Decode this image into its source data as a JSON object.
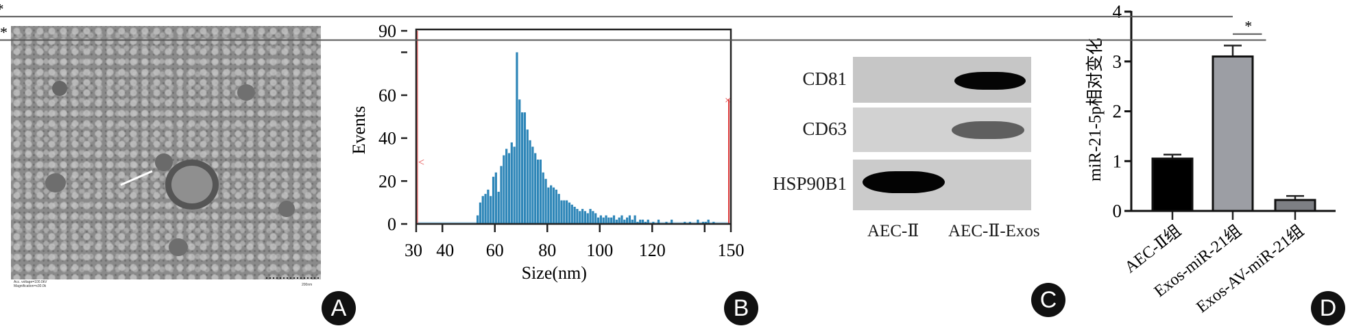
{
  "panel_labels": {
    "a": "A",
    "b": "B",
    "c": "C",
    "d": "D"
  },
  "panel_a": {
    "caption_line1": "Acc. voltage=100.0kV",
    "caption_line2": "Magnification=x30.0k",
    "scale_bar": "200nm"
  },
  "panel_c": {
    "rows": [
      {
        "label": "CD81",
        "lane1": 0,
        "lane2": 1.0
      },
      {
        "label": "CD63",
        "lane1": 0,
        "lane2": 0.55
      },
      {
        "label": "HSP90B1",
        "lane1": 1.0,
        "lane2": 0
      }
    ],
    "lanes": [
      "AEC-Ⅱ",
      "AEC-Ⅱ-Exos"
    ]
  },
  "colors": {
    "histogram": "#2e86b8",
    "gate": "#e03c3c",
    "bar1": "#000000",
    "bar2": "#9c9ea4",
    "bar3": "#7d7f84"
  },
  "chart_data": [
    {
      "type": "bar",
      "title": "",
      "xlabel": "Size(nm)",
      "ylabel": "Events",
      "xlim": [
        30,
        150
      ],
      "ylim": [
        0,
        90
      ],
      "xticks": [
        30,
        40,
        60,
        80,
        100,
        120,
        140,
        150
      ],
      "xtick_labels": [
        "30",
        "40",
        "60",
        "80",
        "100",
        "120",
        "",
        "150"
      ],
      "yticks": [
        0,
        20,
        40,
        60,
        80,
        90
      ],
      "ytick_labels": [
        "0",
        "20",
        "40",
        "60",
        "",
        "90"
      ],
      "bin_start": 53,
      "bin_width": 1,
      "values": [
        4,
        10,
        13,
        14,
        16,
        13,
        22,
        24,
        15,
        27,
        32,
        35,
        33,
        38,
        36,
        80,
        58,
        52,
        52,
        44,
        39,
        36,
        33,
        30,
        30,
        24,
        21,
        17,
        18,
        17,
        16,
        14,
        11,
        11,
        11,
        10,
        9,
        8,
        7,
        6,
        7,
        6,
        5,
        7,
        6,
        5,
        3,
        4,
        3,
        4,
        3,
        3,
        4,
        2,
        3,
        4,
        2,
        3,
        4,
        2,
        4,
        1,
        2,
        2,
        1,
        2,
        0,
        1,
        0,
        2,
        0,
        0,
        1,
        0,
        2,
        0,
        0,
        0,
        0,
        1,
        0,
        1,
        0,
        0,
        2,
        0,
        1,
        1,
        2,
        0,
        1,
        0,
        0,
        0
      ],
      "gate": {
        "left": 30,
        "right": 150,
        "left_marker": 29,
        "right_marker": 58
      }
    },
    {
      "type": "bar",
      "title": "",
      "xlabel": "",
      "ylabel": "miR-21-5p相对变化",
      "ylim": [
        0,
        4
      ],
      "yticks": [
        0,
        1,
        2,
        3,
        4
      ],
      "categories": [
        "AEC-Ⅱ组",
        "Exos-miR-21组",
        "Exos-AV-miR-21组"
      ],
      "values": [
        1.05,
        3.1,
        0.22
      ],
      "errors": [
        0.08,
        0.22,
        0.08
      ],
      "significance": [
        {
          "from": 1,
          "to": 2,
          "label": "*",
          "level": 3.9
        },
        {
          "from": 1,
          "to": 1.5,
          "label": "*",
          "level": 3.55
        },
        {
          "from": 1.5,
          "to": 2,
          "label": "**",
          "level": 3.43
        }
      ]
    }
  ]
}
